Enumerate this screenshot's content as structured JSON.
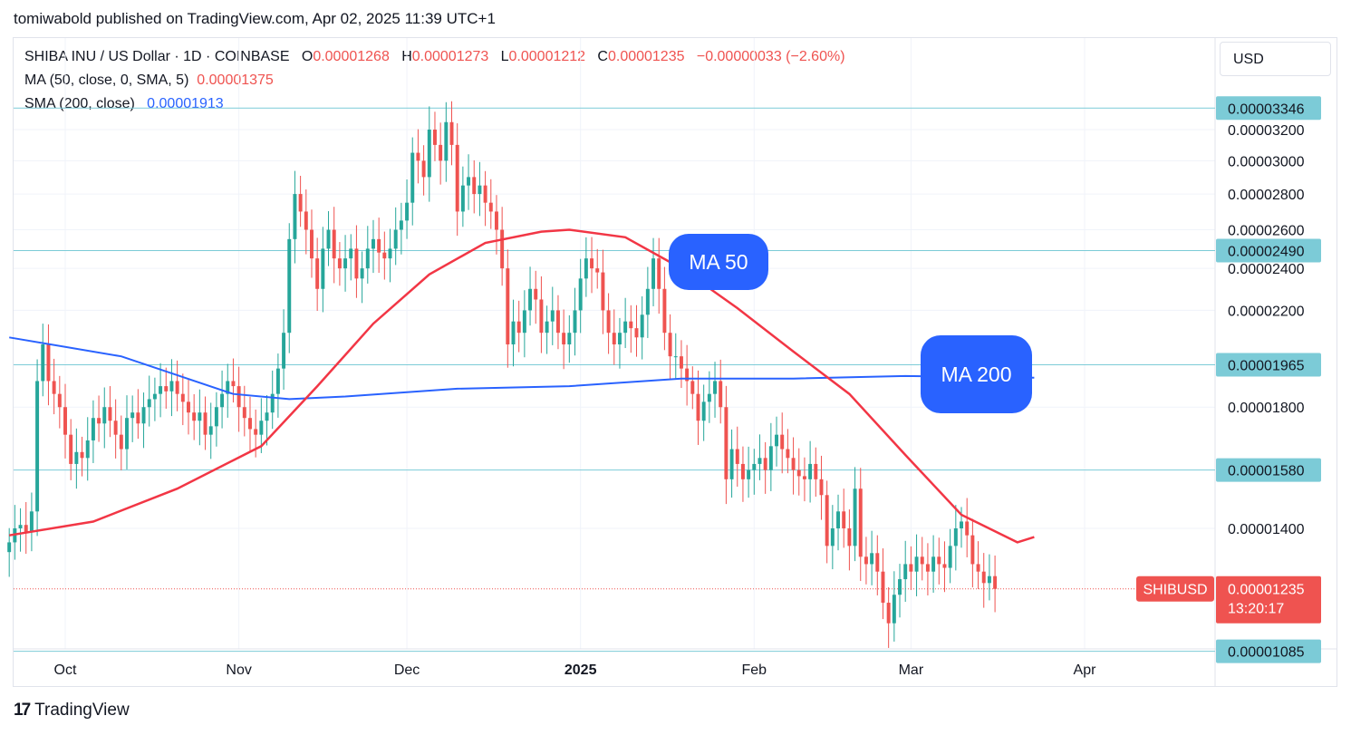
{
  "publisher_line": "tomiwabold published on TradingView.com, Apr 02, 2025 11:39 UTC+1",
  "legend": {
    "symbol": "SHIBA INU / US Dollar · 1D · COINBASE",
    "o_label": "O",
    "o": "0.00001268",
    "h_label": "H",
    "h": "0.00001273",
    "l_label": "L",
    "l": "0.00001212",
    "c_label": "C",
    "c": "0.00001235",
    "change": "−0.00000033 (−2.60%)",
    "ma50_label": "MA (50, close, 0, SMA, 5)",
    "ma50_value": "0.00001375",
    "sma200_label": "SMA (200, close)",
    "sma200_value": "0.00001913"
  },
  "currency": "USD",
  "footer": {
    "brand": "TradingView",
    "mark": "17"
  },
  "colors": {
    "up": "#26a69a",
    "down": "#ef5350",
    "ma50": "#f23645",
    "sma200": "#2962ff",
    "level": "#7ccbd7",
    "callout": "#2962ff",
    "grid": "#f0f3fa"
  },
  "chart_data": {
    "type": "candlestick",
    "symbol": "SHIBUSD",
    "timeframe": "1D",
    "ylim": [
      1.03e-05,
      3.4e-05
    ],
    "y_ticks": [
      "0.00003200",
      "0.00003000",
      "0.00002800",
      "0.00002600",
      "0.00002400",
      "0.00002200",
      "0.00001800",
      "0.00001400"
    ],
    "y_tick_values": [
      3.2e-05,
      3e-05,
      2.8e-05,
      2.6e-05,
      2.4e-05,
      2.2e-05,
      1.8e-05,
      1.4e-05
    ],
    "x_ticks": [
      {
        "label": "Oct",
        "date": "2024-10-01",
        "bold": false
      },
      {
        "label": "Nov",
        "date": "2024-11-01",
        "bold": false
      },
      {
        "label": "Dec",
        "date": "2024-12-01",
        "bold": false
      },
      {
        "label": "2025",
        "date": "2025-01-01",
        "bold": true
      },
      {
        "label": "Feb",
        "date": "2025-02-01",
        "bold": false
      },
      {
        "label": "Mar",
        "date": "2025-03-01",
        "bold": false
      },
      {
        "label": "Apr",
        "date": "2025-04-01",
        "bold": false
      }
    ],
    "start_date": "2024-09-21",
    "closes": [
      1.36e-05,
      1.4e-05,
      1.41e-05,
      1.39e-05,
      1.45e-05,
      1.9e-05,
      2.05e-05,
      1.9e-05,
      1.85e-05,
      1.8e-05,
      1.7e-05,
      1.6e-05,
      1.64e-05,
      1.62e-05,
      1.68e-05,
      1.76e-05,
      1.74e-05,
      1.8e-05,
      1.75e-05,
      1.7e-05,
      1.65e-05,
      1.76e-05,
      1.78e-05,
      1.74e-05,
      1.8e-05,
      1.83e-05,
      1.85e-05,
      1.88e-05,
      1.86e-05,
      1.9e-05,
      1.85e-05,
      1.82e-05,
      1.78e-05,
      1.75e-05,
      1.78e-05,
      1.7e-05,
      1.73e-05,
      1.8e-05,
      1.85e-05,
      1.9e-05,
      1.88e-05,
      1.8e-05,
      1.76e-05,
      1.72e-05,
      1.7e-05,
      1.75e-05,
      1.78e-05,
      1.85e-05,
      1.95e-05,
      2.1e-05,
      2.55e-05,
      2.8e-05,
      2.7e-05,
      2.6e-05,
      2.45e-05,
      2.3e-05,
      2.5e-05,
      2.6e-05,
      2.45e-05,
      2.4e-05,
      2.45e-05,
      2.5e-05,
      2.35e-05,
      2.4e-05,
      2.5e-05,
      2.55e-05,
      2.48e-05,
      2.45e-05,
      2.5e-05,
      2.6e-05,
      2.65e-05,
      2.75e-05,
      3.05e-05,
      3e-05,
      2.9e-05,
      3.2e-05,
      3.1e-05,
      3e-05,
      3.25e-05,
      3.1e-05,
      2.7e-05,
      2.85e-05,
      2.9e-05,
      2.8e-05,
      2.85e-05,
      2.75e-05,
      2.7e-05,
      2.6e-05,
      2.4e-05,
      2.05e-05,
      2.15e-05,
      2.1e-05,
      2.2e-05,
      2.3e-05,
      2.25e-05,
      2.1e-05,
      2.15e-05,
      2.2e-05,
      2.1e-05,
      2.05e-05,
      2.1e-05,
      2.2e-05,
      2.35e-05,
      2.45e-05,
      2.4e-05,
      2.38e-05,
      2.2e-05,
      2.1e-05,
      2.05e-05,
      2.1e-05,
      2.15e-05,
      2.12e-05,
      2.08e-05,
      2.18e-05,
      2.3e-05,
      2.45e-05,
      2.3e-05,
      2.1e-05,
      2e-05,
      2e-05,
      1.95e-05,
      1.9e-05,
      1.85e-05,
      1.75e-05,
      1.82e-05,
      1.85e-05,
      1.9e-05,
      1.8e-05,
      1.55e-05,
      1.65e-05,
      1.6e-05,
      1.55e-05,
      1.58e-05,
      1.6e-05,
      1.62e-05,
      1.58e-05,
      1.66e-05,
      1.7e-05,
      1.65e-05,
      1.62e-05,
      1.58e-05,
      1.56e-05,
      1.55e-05,
      1.6e-05,
      1.55e-05,
      1.5e-05,
      1.35e-05,
      1.4e-05,
      1.45e-05,
      1.4e-05,
      1.35e-05,
      1.52e-05,
      1.32e-05,
      1.3e-05,
      1.33e-05,
      1.28e-05,
      1.2e-05,
      1.15e-05,
      1.22e-05,
      1.26e-05,
      1.3e-05,
      1.28e-05,
      1.32e-05,
      1.3e-05,
      1.28e-05,
      1.32e-05,
      1.3e-05,
      1.29e-05,
      1.35e-05,
      1.4e-05,
      1.42e-05,
      1.38e-05,
      1.3e-05,
      1.28e-05,
      1.25e-05,
      1.268e-05,
      1.235e-05
    ],
    "ma50": [
      [
        0,
        1.38e-05
      ],
      [
        15,
        1.42e-05
      ],
      [
        30,
        1.52e-05
      ],
      [
        45,
        1.66e-05
      ],
      [
        55,
        1.88e-05
      ],
      [
        65,
        2.14e-05
      ],
      [
        75,
        2.37e-05
      ],
      [
        85,
        2.53e-05
      ],
      [
        95,
        2.59e-05
      ],
      [
        100,
        2.6e-05
      ],
      [
        110,
        2.56e-05
      ],
      [
        120,
        2.4e-05
      ],
      [
        130,
        2.21e-05
      ],
      [
        140,
        2.02e-05
      ],
      [
        150,
        1.85e-05
      ],
      [
        160,
        1.63e-05
      ],
      [
        170,
        1.44e-05
      ],
      [
        180,
        1.36e-05
      ],
      [
        183,
        1.375e-05
      ]
    ],
    "sma200": [
      [
        0,
        2.08e-05
      ],
      [
        20,
        2e-05
      ],
      [
        40,
        1.85e-05
      ],
      [
        50,
        1.83e-05
      ],
      [
        60,
        1.84e-05
      ],
      [
        80,
        1.87e-05
      ],
      [
        100,
        1.88e-05
      ],
      [
        120,
        1.91e-05
      ],
      [
        140,
        1.91e-05
      ],
      [
        160,
        1.92e-05
      ],
      [
        183,
        1.913e-05
      ]
    ],
    "levels": [
      "0.00003346",
      "0.00002490",
      "0.00001965",
      "0.00001580",
      "0.00001085"
    ],
    "level_values": [
      3.346e-05,
      2.49e-05,
      1.965e-05,
      1.58e-05,
      1.085e-05
    ],
    "last_price": "0.00001235",
    "last_price_value": 1.235e-05,
    "countdown": "13:20:17",
    "annotations": [
      "MA 50",
      "MA 200"
    ]
  }
}
